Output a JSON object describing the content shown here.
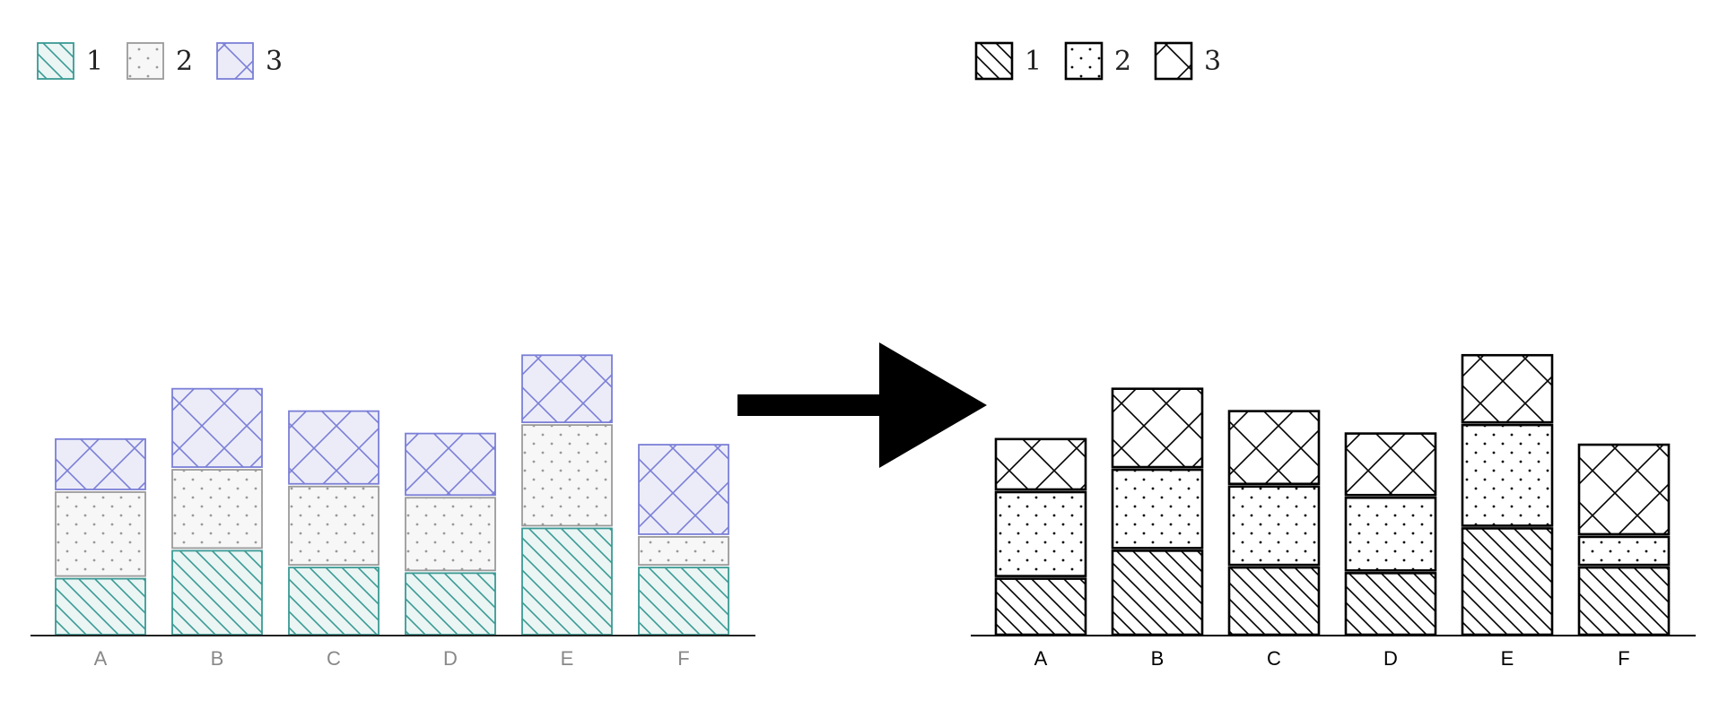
{
  "chart_data": [
    {
      "type": "bar",
      "stacked": true,
      "style": "colored",
      "categories": [
        "A",
        "B",
        "C",
        "D",
        "E",
        "F"
      ],
      "series": [
        {
          "name": "1",
          "values": [
            2.0,
            3.0,
            2.4,
            2.2,
            3.8,
            2.4
          ],
          "pattern": "diagonal-hatch",
          "stroke": "#3a9a94",
          "fill": "#eaf5f4"
        },
        {
          "name": "2",
          "values": [
            3.0,
            2.8,
            2.8,
            2.6,
            3.6,
            1.0
          ],
          "pattern": "dots",
          "stroke": "#9a9a9a",
          "fill": "#f7f7f7"
        },
        {
          "name": "3",
          "values": [
            1.8,
            2.8,
            2.6,
            2.2,
            2.4,
            3.2
          ],
          "pattern": "crosshatch",
          "stroke": "#7b7fd6",
          "fill": "#ececf9"
        }
      ],
      "axis_color": "#222222",
      "tick_label_color": "#888888",
      "legend_position": "top-left",
      "grid": false
    },
    {
      "type": "bar",
      "stacked": true,
      "style": "black-and-white",
      "categories": [
        "A",
        "B",
        "C",
        "D",
        "E",
        "F"
      ],
      "series": [
        {
          "name": "1",
          "values": [
            2.0,
            3.0,
            2.4,
            2.2,
            3.8,
            2.4
          ],
          "pattern": "diagonal-hatch",
          "stroke": "#000000",
          "fill": "#ffffff"
        },
        {
          "name": "2",
          "values": [
            3.0,
            2.8,
            2.8,
            2.6,
            3.6,
            1.0
          ],
          "pattern": "dots",
          "stroke": "#000000",
          "fill": "#ffffff"
        },
        {
          "name": "3",
          "values": [
            1.8,
            2.8,
            2.6,
            2.2,
            2.4,
            3.2
          ],
          "pattern": "crosshatch",
          "stroke": "#000000",
          "fill": "#ffffff"
        }
      ],
      "axis_color": "#000000",
      "tick_label_color": "#000000",
      "legend_position": "top-left",
      "grid": false
    }
  ],
  "arrow": {
    "direction": "right",
    "color": "#000000"
  }
}
